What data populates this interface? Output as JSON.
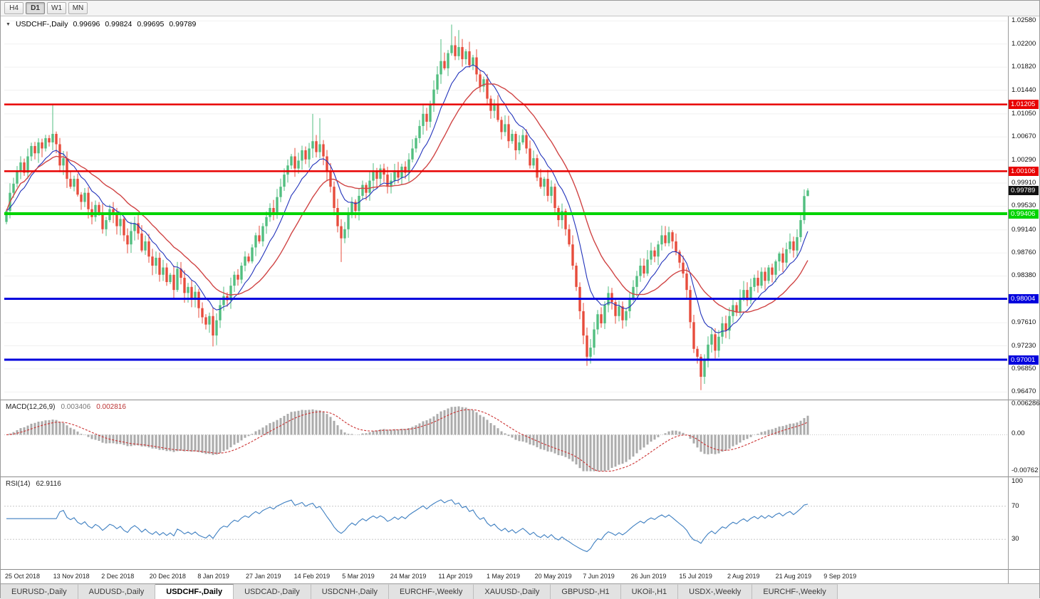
{
  "toolbar": {
    "timeframes": [
      {
        "label": "H4",
        "active": false
      },
      {
        "label": "D1",
        "active": true
      },
      {
        "label": "W1",
        "active": false
      },
      {
        "label": "MN",
        "active": false
      }
    ]
  },
  "chart": {
    "title": {
      "symbol": "USDCHF-,Daily",
      "open": "0.99696",
      "high": "0.99824",
      "low": "0.99695",
      "close": "0.99789"
    },
    "current_price": "0.99789",
    "price_axis": {
      "min": 0.9638,
      "max": 1.0262,
      "ticks": [
        "1.02580",
        "1.02200",
        "1.01820",
        "1.01440",
        "1.01050",
        "1.00670",
        "1.00290",
        "0.99910",
        "0.99530",
        "0.99140",
        "0.98760",
        "0.98380",
        "0.97610",
        "0.97230",
        "0.96850",
        "0.96470"
      ]
    },
    "levels": [
      {
        "label": "1.01205",
        "value": 1.01205,
        "color": "#e80000",
        "weight": 2.5
      },
      {
        "label": "1.00106",
        "value": 1.00106,
        "color": "#e80000",
        "weight": 2.5
      },
      {
        "label": "0.99406",
        "value": 0.99406,
        "color": "#00d400",
        "weight": 4
      },
      {
        "label": "0.98004",
        "value": 0.98004,
        "color": "#0000dd",
        "weight": 3
      },
      {
        "label": "0.97001",
        "value": 0.97001,
        "color": "#0000dd",
        "weight": 3
      }
    ]
  },
  "chart_data": {
    "type": "candlestick",
    "title": "USDCHF-,Daily",
    "symbol": "USDCHF",
    "timeframe": "Daily",
    "last_bar": {
      "open": 0.99696,
      "high": 0.99824,
      "low": 0.99695,
      "close": 0.99789
    },
    "x_labels": [
      "25 Oct 2018",
      "13 Nov 2018",
      "2 Dec 2018",
      "20 Dec 2018",
      "8 Jan 2019",
      "27 Jan 2019",
      "14 Feb 2019",
      "5 Mar 2019",
      "24 Mar 2019",
      "11 Apr 2019",
      "1 May 2019",
      "20 May 2019",
      "7 Jun 2019",
      "26 Jun 2019",
      "15 Jul 2019",
      "2 Aug 2019",
      "21 Aug 2019",
      "9 Sep 2019"
    ],
    "ylim": [
      0.9638,
      1.0262
    ],
    "closes": [
      0.9945,
      0.9975,
      0.999,
      1.001,
      1.0025,
      1.0008,
      1.0035,
      1.0052,
      1.004,
      1.0058,
      1.0048,
      1.0065,
      1.0058,
      1.0072,
      1.0055,
      1.002,
      1.0032,
      0.9998,
      0.9985,
      0.9998,
      0.9972,
      0.996,
      0.9975,
      0.9948,
      0.9935,
      0.9955,
      0.9942,
      0.9915,
      0.993,
      0.9948,
      0.994,
      0.992,
      0.9932,
      0.9905,
      0.989,
      0.9912,
      0.9925,
      0.9908,
      0.988,
      0.9895,
      0.987,
      0.9855,
      0.9868,
      0.984,
      0.9852,
      0.9828,
      0.984,
      0.9815,
      0.985,
      0.9835,
      0.981,
      0.982,
      0.98,
      0.9812,
      0.9785,
      0.977,
      0.9758,
      0.9772,
      0.974,
      0.9765,
      0.979,
      0.9805,
      0.9798,
      0.9822,
      0.984,
      0.9832,
      0.9855,
      0.987,
      0.9862,
      0.9885,
      0.9905,
      0.9895,
      0.992,
      0.9935,
      0.995,
      0.9942,
      0.9968,
      0.9985,
      1.0005,
      1.002,
      1.0035,
      1.0015,
      1.0028,
      1.0045,
      1.003,
      1.0048,
      1.006,
      1.0042,
      1.0055,
      1.0035,
      1.001,
      0.9985,
      0.995,
      0.992,
      0.99,
      0.9915,
      0.994,
      0.996,
      0.9945,
      0.997,
      0.9988,
      0.9975,
      0.9995,
      1.001,
      0.9998,
      1.0015,
      1.0005,
      0.9985,
      0.9995,
      1.0012,
      1.0,
      1.0018,
      1.0008,
      1.003,
      1.0048,
      1.0065,
      1.0085,
      1.0105,
      1.0092,
      1.012,
      1.0145,
      1.017,
      1.0192,
      1.018,
      1.0205,
      1.0218,
      1.02,
      1.0215,
      1.0195,
      1.0208,
      1.0185,
      1.0198,
      1.017,
      1.015,
      1.0162,
      1.013,
      1.011,
      1.0122,
      1.0095,
      1.0075,
      1.0088,
      1.006,
      1.0072,
      1.0045,
      1.0058,
      1.007,
      1.0048,
      1.002,
      1.0032,
      1.0,
      0.9985,
      0.9998,
      0.997,
      0.9985,
      0.995,
      0.993,
      0.9945,
      0.9915,
      0.989,
      0.9855,
      0.982,
      0.978,
      0.974,
      0.9705,
      0.972,
      0.975,
      0.9775,
      0.976,
      0.979,
      0.981,
      0.9795,
      0.9772,
      0.9788,
      0.9765,
      0.978,
      0.98,
      0.982,
      0.9838,
      0.9855,
      0.9842,
      0.9865,
      0.988,
      0.987,
      0.989,
      0.9905,
      0.9892,
      0.991,
      0.9895,
      0.9878,
      0.986,
      0.9842,
      0.9815,
      0.9762,
      0.9718,
      0.9705,
      0.9672,
      0.97,
      0.9725,
      0.9742,
      0.9715,
      0.9738,
      0.976,
      0.9748,
      0.9772,
      0.979,
      0.9778,
      0.98,
      0.9815,
      0.9798,
      0.982,
      0.9835,
      0.9822,
      0.9845,
      0.983,
      0.9852,
      0.984,
      0.9862,
      0.9875,
      0.986,
      0.9882,
      0.9895,
      0.988,
      0.9902,
      0.993,
      0.99696,
      0.99789
    ],
    "extremes": {
      "13": {
        "high": 1.0121
      },
      "58": {
        "low": 0.9722
      },
      "86": {
        "high": 1.0105
      },
      "88": {
        "high": 1.0098
      },
      "94": {
        "low": 0.9861
      },
      "122": {
        "high": 1.0228
      },
      "125": {
        "high": 1.0252
      },
      "127": {
        "high": 1.0243
      },
      "163": {
        "low": 0.969
      },
      "195": {
        "low": 0.965
      },
      "225": {
        "high": 0.99824,
        "low": 0.99695
      }
    },
    "moving_averages": [
      {
        "type": "ema",
        "period": 10,
        "color": "#2233bb"
      },
      {
        "type": "lwma",
        "period": 30,
        "color": "#d04545"
      }
    ],
    "colors": {
      "up": "#52be80",
      "down": "#e74c3c",
      "grid": "#f0f0f0",
      "macd_hist": "#ababab",
      "macd_signal": "#cc3333",
      "rsi": "#3e7fc1"
    },
    "indicators": {
      "macd": {
        "label": "MACD(12,26,9)",
        "value_main": "0.003406",
        "value_signal": "0.002816",
        "params": [
          12,
          26,
          9
        ],
        "axis": [
          "0.006286",
          "0.00",
          "-0.00762"
        ],
        "axis_values": [
          0.006286,
          0,
          -0.00762
        ],
        "range": [
          -0.00762,
          0.006286
        ]
      },
      "rsi": {
        "label": "RSI(14)",
        "value": "62.9116",
        "period": 14,
        "levels": [
          70,
          30
        ],
        "axis": [
          "100",
          "70",
          "30"
        ],
        "axis_values": [
          100,
          70,
          30
        ]
      }
    }
  },
  "tabs": [
    {
      "label": "EURUSD-,Daily",
      "active": false
    },
    {
      "label": "AUDUSD-,Daily",
      "active": false
    },
    {
      "label": "USDCHF-,Daily",
      "active": true
    },
    {
      "label": "USDCAD-,Daily",
      "active": false
    },
    {
      "label": "USDCNH-,Daily",
      "active": false
    },
    {
      "label": "EURCHF-,Weekly",
      "active": false
    },
    {
      "label": "XAUUSD-,Daily",
      "active": false
    },
    {
      "label": "GBPUSD-,H1",
      "active": false
    },
    {
      "label": "UKOil-,H1",
      "active": false
    },
    {
      "label": "USDX-,Weekly",
      "active": false
    },
    {
      "label": "EURCHF-,Weekly",
      "active": false
    }
  ]
}
